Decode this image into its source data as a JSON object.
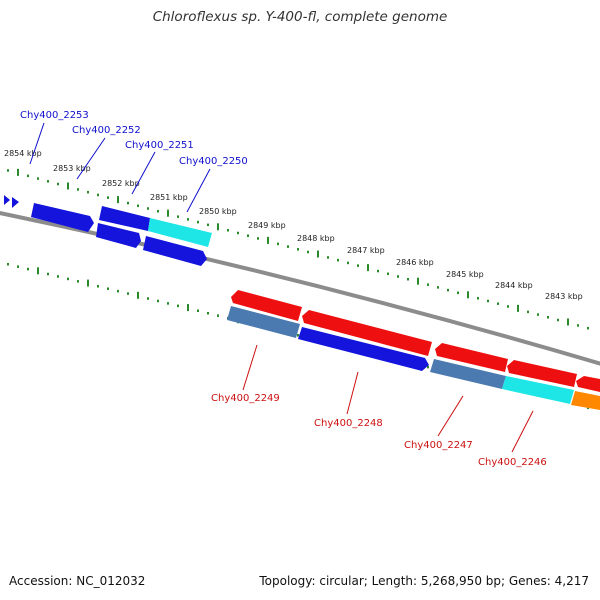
{
  "title": "Chloroflexus sp. Y-400-fl, complete genome",
  "footer": {
    "accession": "Accession: NC_012032",
    "topology": "Topology: circular; Length: 5,268,950 bp; Genes: 4,217"
  },
  "colors": {
    "backbone": "#8c8c8c",
    "tick": "#2a8a2a",
    "upper_label": "#1010cc",
    "lower_label": "#cc1010",
    "gene_blue": "#1414dc",
    "gene_cyan": "#1ee6e6",
    "gene_red": "#ee1010",
    "gene_steel": "#4a7ab0",
    "gene_orange": "#ff8800"
  },
  "scale_labels": [
    "2854 kbp",
    "2853 kbp",
    "2852 kbp",
    "2851 kbp",
    "2850 kbp",
    "2849 kbp",
    "2848 kbp",
    "2847 kbp",
    "2846 kbp",
    "2845 kbp",
    "2844 kbp",
    "2843 kbp"
  ],
  "upper_gene_labels": [
    "Chy400_2253",
    "Chy400_2252",
    "Chy400_2251",
    "Chy400_2250"
  ],
  "lower_gene_labels": [
    "Chy400_2249",
    "Chy400_2248",
    "Chy400_2247",
    "Chy400_2246"
  ]
}
